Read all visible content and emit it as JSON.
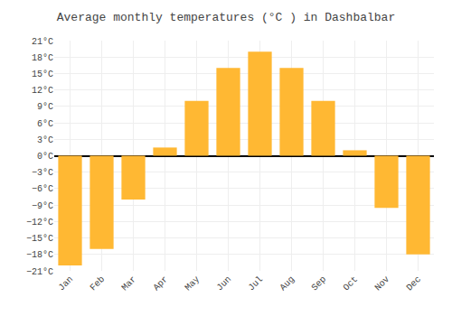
{
  "chart_data": {
    "type": "bar",
    "title": "Average monthly temperatures (°C ) in Dashbalbar",
    "categories": [
      "Jan",
      "Feb",
      "Mar",
      "Apr",
      "May",
      "Jun",
      "Jul",
      "Aug",
      "Sep",
      "Oct",
      "Nov",
      "Dec"
    ],
    "values": [
      -20,
      -17,
      -8,
      1.5,
      10,
      16,
      19,
      16,
      10,
      1,
      -9.5,
      -18
    ],
    "color": "#FFB833",
    "ylim": [
      -21,
      21
    ],
    "yticks": [
      {
        "value": -21,
        "label": "−21°C"
      },
      {
        "value": -18,
        "label": "−18°C"
      },
      {
        "value": -15,
        "label": "−15°C"
      },
      {
        "value": -12,
        "label": "−12°C"
      },
      {
        "value": -9,
        "label": "−9°C"
      },
      {
        "value": -6,
        "label": "−6°C"
      },
      {
        "value": -3,
        "label": "−3°C"
      },
      {
        "value": 0,
        "label": "0°C"
      },
      {
        "value": 3,
        "label": "3°C"
      },
      {
        "value": 6,
        "label": "6°C"
      },
      {
        "value": 9,
        "label": "9°C"
      },
      {
        "value": 12,
        "label": "12°C"
      },
      {
        "value": 15,
        "label": "15°C"
      },
      {
        "value": 18,
        "label": "18°C"
      },
      {
        "value": 21,
        "label": "21°C"
      }
    ],
    "grid": true
  }
}
